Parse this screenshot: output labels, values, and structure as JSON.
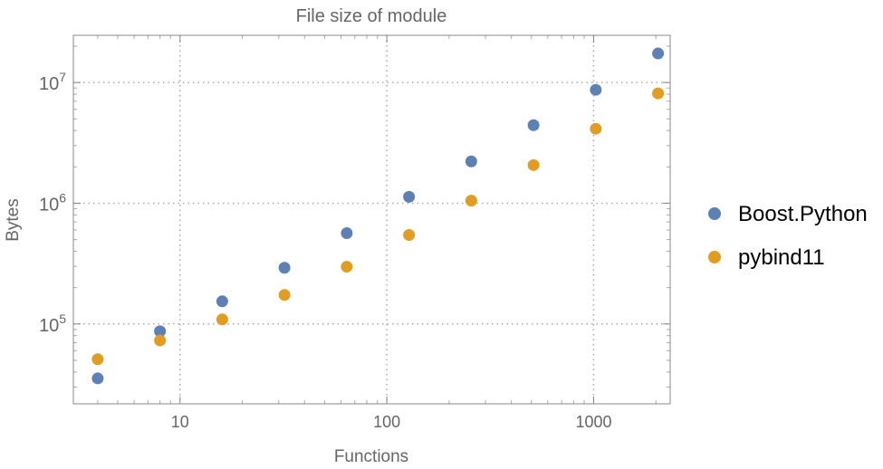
{
  "chart_data": {
    "type": "scatter",
    "title": "File size of module",
    "xlabel": "Functions",
    "ylabel": "Bytes",
    "xscale": "log",
    "yscale": "log",
    "xlim": [
      3.05,
      2344
    ],
    "ylim": [
      21800,
      24600000
    ],
    "grid": true,
    "legend_position": "right",
    "x_ticks": [
      {
        "value": 10,
        "label": "10"
      },
      {
        "value": 100,
        "label": "100"
      },
      {
        "value": 1000,
        "label": "1000"
      }
    ],
    "y_ticks": [
      {
        "value": 100000,
        "base": "10",
        "exp": "5"
      },
      {
        "value": 1000000,
        "base": "10",
        "exp": "6"
      },
      {
        "value": 10000000,
        "base": "10",
        "exp": "7"
      }
    ],
    "x": [
      4,
      8,
      16,
      32,
      64,
      128,
      256,
      512,
      1024,
      2048
    ],
    "series": [
      {
        "name": "Boost.Python",
        "color": "#5E81B5",
        "values": [
          35400,
          87000,
          154000,
          292000,
          565000,
          1130000,
          2220000,
          4430000,
          8700000,
          17400000
        ]
      },
      {
        "name": "pybind11",
        "color": "#E19C24",
        "values": [
          51000,
          73000,
          109000,
          174000,
          298000,
          546000,
          1050000,
          2070000,
          4140000,
          8130000
        ]
      }
    ]
  }
}
